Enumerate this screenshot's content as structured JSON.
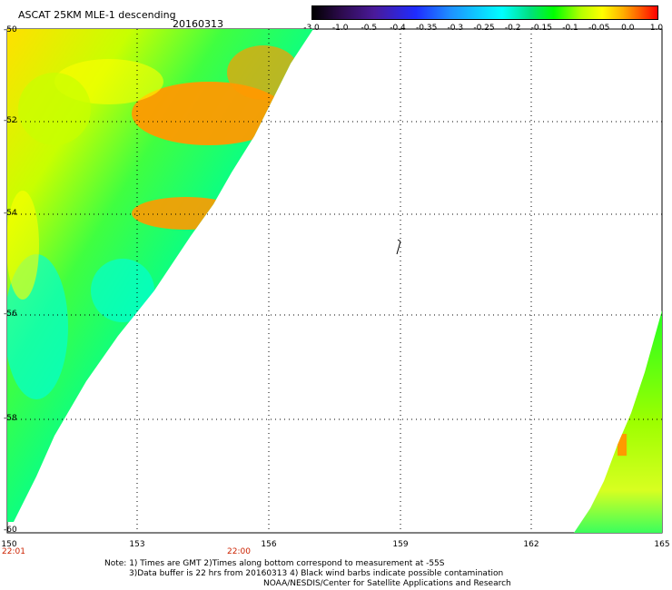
{
  "header": {
    "title": "ASCAT 25KM MLE-1 descending",
    "date": "20160313"
  },
  "colorbar": {
    "ticks": [
      "-3.0",
      "-1.0",
      "-0.5",
      "-0.4",
      "-0.35",
      "-0.3",
      "-0.25",
      "-0.2",
      "-0.15",
      "-0.1",
      "-0.05",
      "0.0",
      "1.0"
    ]
  },
  "axes": {
    "lat_labels": [
      "-50",
      "-52",
      "-54",
      "-56",
      "-58",
      "-60"
    ],
    "lon_labels": [
      "150",
      "153",
      "156",
      "159",
      "162",
      "165"
    ],
    "time_labels": [
      "22:01",
      "22:00"
    ]
  },
  "note": {
    "line1": "Note: 1) Times are GMT 2)Times along bottom correspond to measurement at -55S",
    "line2": "3)Data buffer is 22 hrs from 20160313 4) Black wind barbs indicate possible contamination",
    "line3": "NOAA/NESDIS/Center for Satellite Applications and Research"
  },
  "map": {
    "left_swath": "yellow-green-orange MLE values, diagonal edge",
    "right_swath": "green-yellow MLE values"
  }
}
